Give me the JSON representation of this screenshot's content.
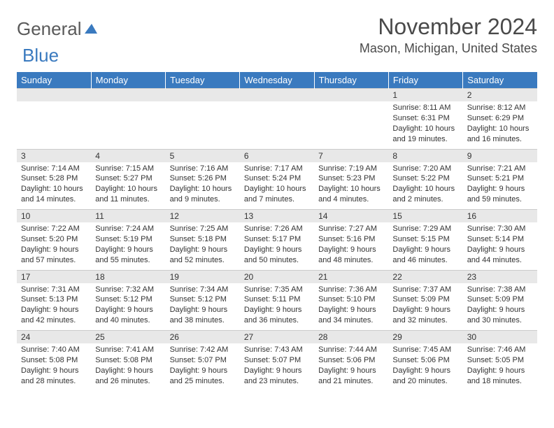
{
  "logo": {
    "text1": "General",
    "text2": "Blue"
  },
  "title": "November 2024",
  "location": "Mason, Michigan, United States",
  "styling": {
    "header_bg": "#3a7abf",
    "header_text": "#ffffff",
    "daynum_bg": "#e8e8e8",
    "body_bg": "#ffffff",
    "text_color": "#333333",
    "title_color": "#4a4a4a",
    "title_fontsize": 32,
    "location_fontsize": 18,
    "dayhdr_fontsize": 13,
    "cell_fontsize": 11
  },
  "day_headers": [
    "Sunday",
    "Monday",
    "Tuesday",
    "Wednesday",
    "Thursday",
    "Friday",
    "Saturday"
  ],
  "weeks": [
    [
      null,
      null,
      null,
      null,
      null,
      {
        "n": "1",
        "sr": "Sunrise: 8:11 AM",
        "ss": "Sunset: 6:31 PM",
        "d1": "Daylight: 10 hours",
        "d2": "and 19 minutes."
      },
      {
        "n": "2",
        "sr": "Sunrise: 8:12 AM",
        "ss": "Sunset: 6:29 PM",
        "d1": "Daylight: 10 hours",
        "d2": "and 16 minutes."
      }
    ],
    [
      {
        "n": "3",
        "sr": "Sunrise: 7:14 AM",
        "ss": "Sunset: 5:28 PM",
        "d1": "Daylight: 10 hours",
        "d2": "and 14 minutes."
      },
      {
        "n": "4",
        "sr": "Sunrise: 7:15 AM",
        "ss": "Sunset: 5:27 PM",
        "d1": "Daylight: 10 hours",
        "d2": "and 11 minutes."
      },
      {
        "n": "5",
        "sr": "Sunrise: 7:16 AM",
        "ss": "Sunset: 5:26 PM",
        "d1": "Daylight: 10 hours",
        "d2": "and 9 minutes."
      },
      {
        "n": "6",
        "sr": "Sunrise: 7:17 AM",
        "ss": "Sunset: 5:24 PM",
        "d1": "Daylight: 10 hours",
        "d2": "and 7 minutes."
      },
      {
        "n": "7",
        "sr": "Sunrise: 7:19 AM",
        "ss": "Sunset: 5:23 PM",
        "d1": "Daylight: 10 hours",
        "d2": "and 4 minutes."
      },
      {
        "n": "8",
        "sr": "Sunrise: 7:20 AM",
        "ss": "Sunset: 5:22 PM",
        "d1": "Daylight: 10 hours",
        "d2": "and 2 minutes."
      },
      {
        "n": "9",
        "sr": "Sunrise: 7:21 AM",
        "ss": "Sunset: 5:21 PM",
        "d1": "Daylight: 9 hours",
        "d2": "and 59 minutes."
      }
    ],
    [
      {
        "n": "10",
        "sr": "Sunrise: 7:22 AM",
        "ss": "Sunset: 5:20 PM",
        "d1": "Daylight: 9 hours",
        "d2": "and 57 minutes."
      },
      {
        "n": "11",
        "sr": "Sunrise: 7:24 AM",
        "ss": "Sunset: 5:19 PM",
        "d1": "Daylight: 9 hours",
        "d2": "and 55 minutes."
      },
      {
        "n": "12",
        "sr": "Sunrise: 7:25 AM",
        "ss": "Sunset: 5:18 PM",
        "d1": "Daylight: 9 hours",
        "d2": "and 52 minutes."
      },
      {
        "n": "13",
        "sr": "Sunrise: 7:26 AM",
        "ss": "Sunset: 5:17 PM",
        "d1": "Daylight: 9 hours",
        "d2": "and 50 minutes."
      },
      {
        "n": "14",
        "sr": "Sunrise: 7:27 AM",
        "ss": "Sunset: 5:16 PM",
        "d1": "Daylight: 9 hours",
        "d2": "and 48 minutes."
      },
      {
        "n": "15",
        "sr": "Sunrise: 7:29 AM",
        "ss": "Sunset: 5:15 PM",
        "d1": "Daylight: 9 hours",
        "d2": "and 46 minutes."
      },
      {
        "n": "16",
        "sr": "Sunrise: 7:30 AM",
        "ss": "Sunset: 5:14 PM",
        "d1": "Daylight: 9 hours",
        "d2": "and 44 minutes."
      }
    ],
    [
      {
        "n": "17",
        "sr": "Sunrise: 7:31 AM",
        "ss": "Sunset: 5:13 PM",
        "d1": "Daylight: 9 hours",
        "d2": "and 42 minutes."
      },
      {
        "n": "18",
        "sr": "Sunrise: 7:32 AM",
        "ss": "Sunset: 5:12 PM",
        "d1": "Daylight: 9 hours",
        "d2": "and 40 minutes."
      },
      {
        "n": "19",
        "sr": "Sunrise: 7:34 AM",
        "ss": "Sunset: 5:12 PM",
        "d1": "Daylight: 9 hours",
        "d2": "and 38 minutes."
      },
      {
        "n": "20",
        "sr": "Sunrise: 7:35 AM",
        "ss": "Sunset: 5:11 PM",
        "d1": "Daylight: 9 hours",
        "d2": "and 36 minutes."
      },
      {
        "n": "21",
        "sr": "Sunrise: 7:36 AM",
        "ss": "Sunset: 5:10 PM",
        "d1": "Daylight: 9 hours",
        "d2": "and 34 minutes."
      },
      {
        "n": "22",
        "sr": "Sunrise: 7:37 AM",
        "ss": "Sunset: 5:09 PM",
        "d1": "Daylight: 9 hours",
        "d2": "and 32 minutes."
      },
      {
        "n": "23",
        "sr": "Sunrise: 7:38 AM",
        "ss": "Sunset: 5:09 PM",
        "d1": "Daylight: 9 hours",
        "d2": "and 30 minutes."
      }
    ],
    [
      {
        "n": "24",
        "sr": "Sunrise: 7:40 AM",
        "ss": "Sunset: 5:08 PM",
        "d1": "Daylight: 9 hours",
        "d2": "and 28 minutes."
      },
      {
        "n": "25",
        "sr": "Sunrise: 7:41 AM",
        "ss": "Sunset: 5:08 PM",
        "d1": "Daylight: 9 hours",
        "d2": "and 26 minutes."
      },
      {
        "n": "26",
        "sr": "Sunrise: 7:42 AM",
        "ss": "Sunset: 5:07 PM",
        "d1": "Daylight: 9 hours",
        "d2": "and 25 minutes."
      },
      {
        "n": "27",
        "sr": "Sunrise: 7:43 AM",
        "ss": "Sunset: 5:07 PM",
        "d1": "Daylight: 9 hours",
        "d2": "and 23 minutes."
      },
      {
        "n": "28",
        "sr": "Sunrise: 7:44 AM",
        "ss": "Sunset: 5:06 PM",
        "d1": "Daylight: 9 hours",
        "d2": "and 21 minutes."
      },
      {
        "n": "29",
        "sr": "Sunrise: 7:45 AM",
        "ss": "Sunset: 5:06 PM",
        "d1": "Daylight: 9 hours",
        "d2": "and 20 minutes."
      },
      {
        "n": "30",
        "sr": "Sunrise: 7:46 AM",
        "ss": "Sunset: 5:05 PM",
        "d1": "Daylight: 9 hours",
        "d2": "and 18 minutes."
      }
    ]
  ]
}
